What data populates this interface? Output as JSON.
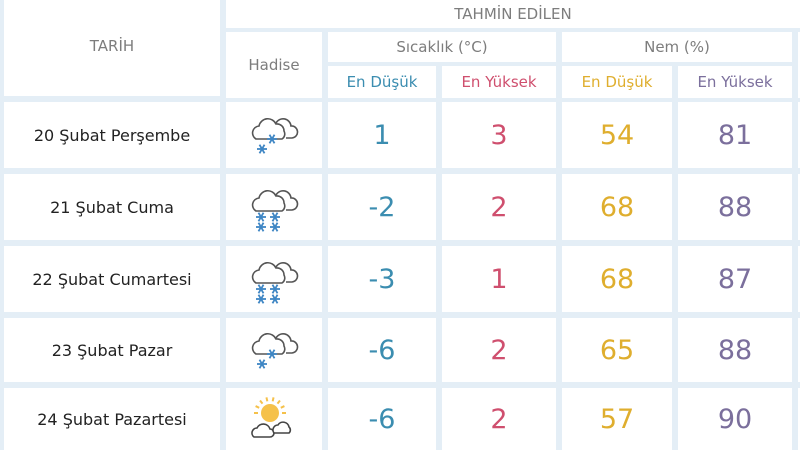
{
  "header": {
    "date_col": "TARİH",
    "forecast_group": "TAHMİN EDİLEN",
    "event_col": "Hadise",
    "temp_group": "Sıcaklık (°C)",
    "humidity_group": "Nem (%)",
    "temp_low": "En Düşük",
    "temp_high": "En Yüksek",
    "hum_low": "En Düşük",
    "hum_high": "En Yüksek"
  },
  "colors": {
    "temp_low": "#3b8db0",
    "temp_high": "#cf4f6e",
    "hum_low": "#dfae2e",
    "hum_high": "#7b6f9c",
    "grid": "#e4eef6"
  },
  "rows": [
    {
      "date": "20 Şubat Perşembe",
      "icon": "light-snow-cloud-icon",
      "temp_low": "1",
      "temp_high": "3",
      "hum_low": "54",
      "hum_high": "81"
    },
    {
      "date": "21 Şubat Cuma",
      "icon": "snow-cloud-icon",
      "temp_low": "-2",
      "temp_high": "2",
      "hum_low": "68",
      "hum_high": "88"
    },
    {
      "date": "22 Şubat Cumartesi",
      "icon": "snow-cloud-icon",
      "temp_low": "-3",
      "temp_high": "1",
      "hum_low": "68",
      "hum_high": "87"
    },
    {
      "date": "23 Şubat Pazar",
      "icon": "light-snow-cloud-icon",
      "temp_low": "-6",
      "temp_high": "2",
      "hum_low": "65",
      "hum_high": "88"
    },
    {
      "date": "24 Şubat Pazartesi",
      "icon": "partly-cloudy-icon",
      "temp_low": "-6",
      "temp_high": "2",
      "hum_low": "57",
      "hum_high": "90"
    }
  ]
}
